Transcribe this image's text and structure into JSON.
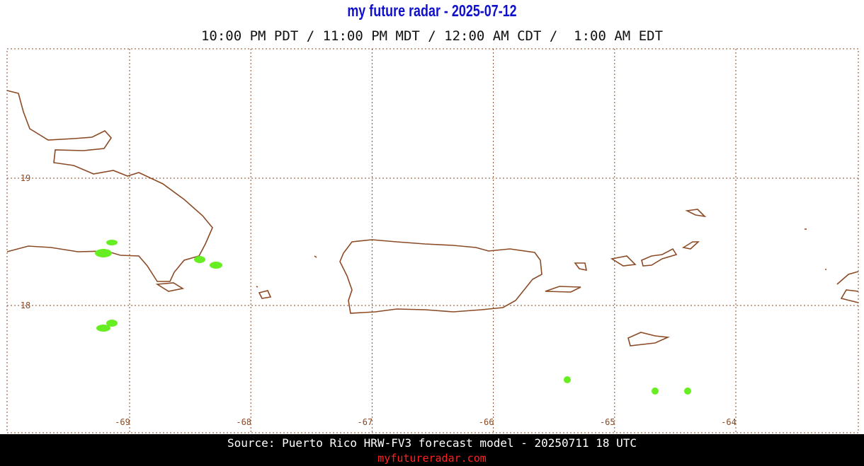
{
  "header": {
    "title": "my future radar - 2025-07-12",
    "subtitle": "10:00 PM PDT / 11:00 PM MDT / 12:00 AM CDT /  1:00 AM EDT"
  },
  "map": {
    "lon_ticks": [
      -69,
      -68,
      -67,
      -66,
      -65,
      -64
    ],
    "lat_ticks": [
      19,
      18
    ]
  },
  "footer": {
    "source": "Source: Puerto Rico HRW-FV3 forecast model - 20250711 18 UTC",
    "site": "myfutureradar.com"
  }
}
